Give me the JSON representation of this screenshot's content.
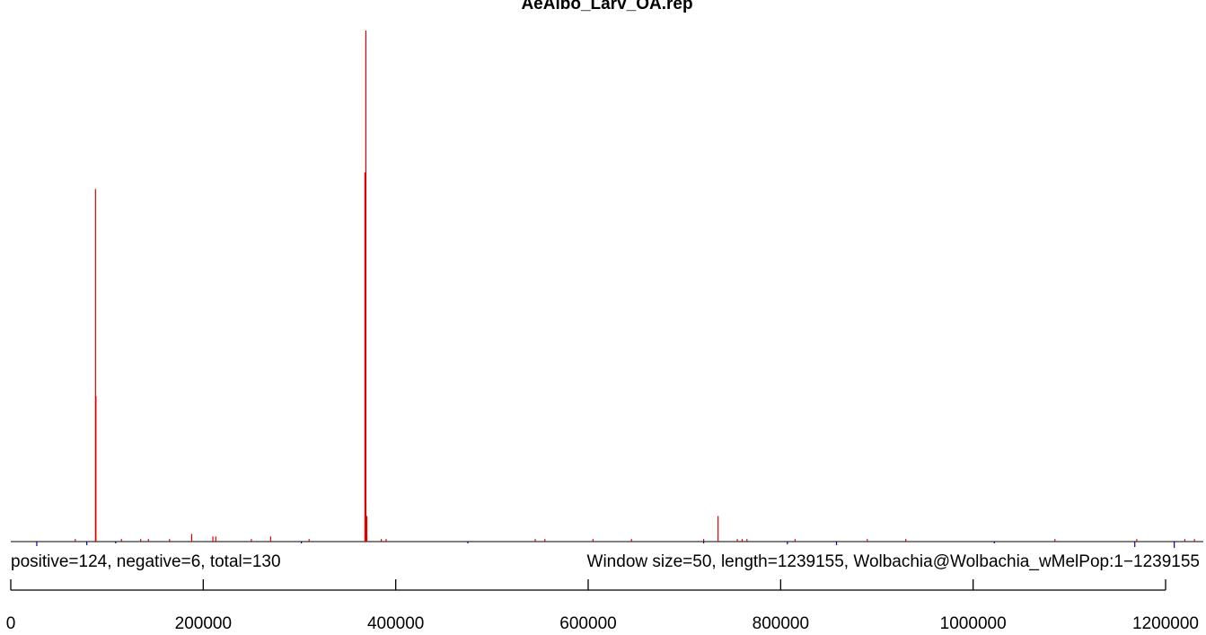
{
  "chart_data": {
    "type": "bar",
    "title": "AeAlbo_Larv_OA.rep",
    "summary_left": "positive=124, negative=6, total=130",
    "summary_right": "Window size=50, length=1239155, Wolbachia@Wolbachia_wMelPop:1−1239155",
    "xlim": [
      0,
      1239155
    ],
    "x_ticks": [
      0,
      200000,
      400000,
      600000,
      800000,
      1000000,
      1200000
    ],
    "x_tick_labels": [
      "0",
      "200000",
      "400000",
      "600000",
      "800000",
      "1000000",
      "1200000"
    ],
    "ylim": [
      -12,
      400
    ],
    "colors": {
      "positive": "#dd0000",
      "negative": "#0000cc",
      "baseline": "#000000"
    },
    "series": [
      {
        "strand": "positive",
        "points": [
          [
            67000,
            2
          ],
          [
            88000,
            276
          ],
          [
            88500,
            114
          ],
          [
            115000,
            2
          ],
          [
            135000,
            2
          ],
          [
            143000,
            2
          ],
          [
            165000,
            2
          ],
          [
            188000,
            6
          ],
          [
            210000,
            4
          ],
          [
            213000,
            4
          ],
          [
            250000,
            2
          ],
          [
            270000,
            4
          ],
          [
            310000,
            2
          ],
          [
            368000,
            289
          ],
          [
            369000,
            400
          ],
          [
            370000,
            20
          ],
          [
            385000,
            2
          ],
          [
            390000,
            2
          ],
          [
            545000,
            2
          ],
          [
            555000,
            2
          ],
          [
            605000,
            2
          ],
          [
            645000,
            2
          ],
          [
            720000,
            2
          ],
          [
            735000,
            20
          ],
          [
            755000,
            2
          ],
          [
            760000,
            2
          ],
          [
            765000,
            2
          ],
          [
            815000,
            2
          ],
          [
            890000,
            2
          ],
          [
            930000,
            2
          ],
          [
            1085000,
            2
          ],
          [
            1170000,
            2
          ],
          [
            1220000,
            2
          ],
          [
            1230000,
            2
          ]
        ]
      },
      {
        "strand": "negative",
        "points": [
          [
            27000,
            -5
          ],
          [
            79000,
            -4
          ],
          [
            109000,
            -2
          ],
          [
            302000,
            -2
          ],
          [
            475000,
            -2
          ],
          [
            720000,
            -2
          ],
          [
            807000,
            -3
          ],
          [
            858000,
            -4
          ],
          [
            1022000,
            -2
          ],
          [
            1168000,
            -6
          ],
          [
            1209000,
            -7
          ]
        ]
      }
    ],
    "grid": false,
    "legend": "none"
  }
}
